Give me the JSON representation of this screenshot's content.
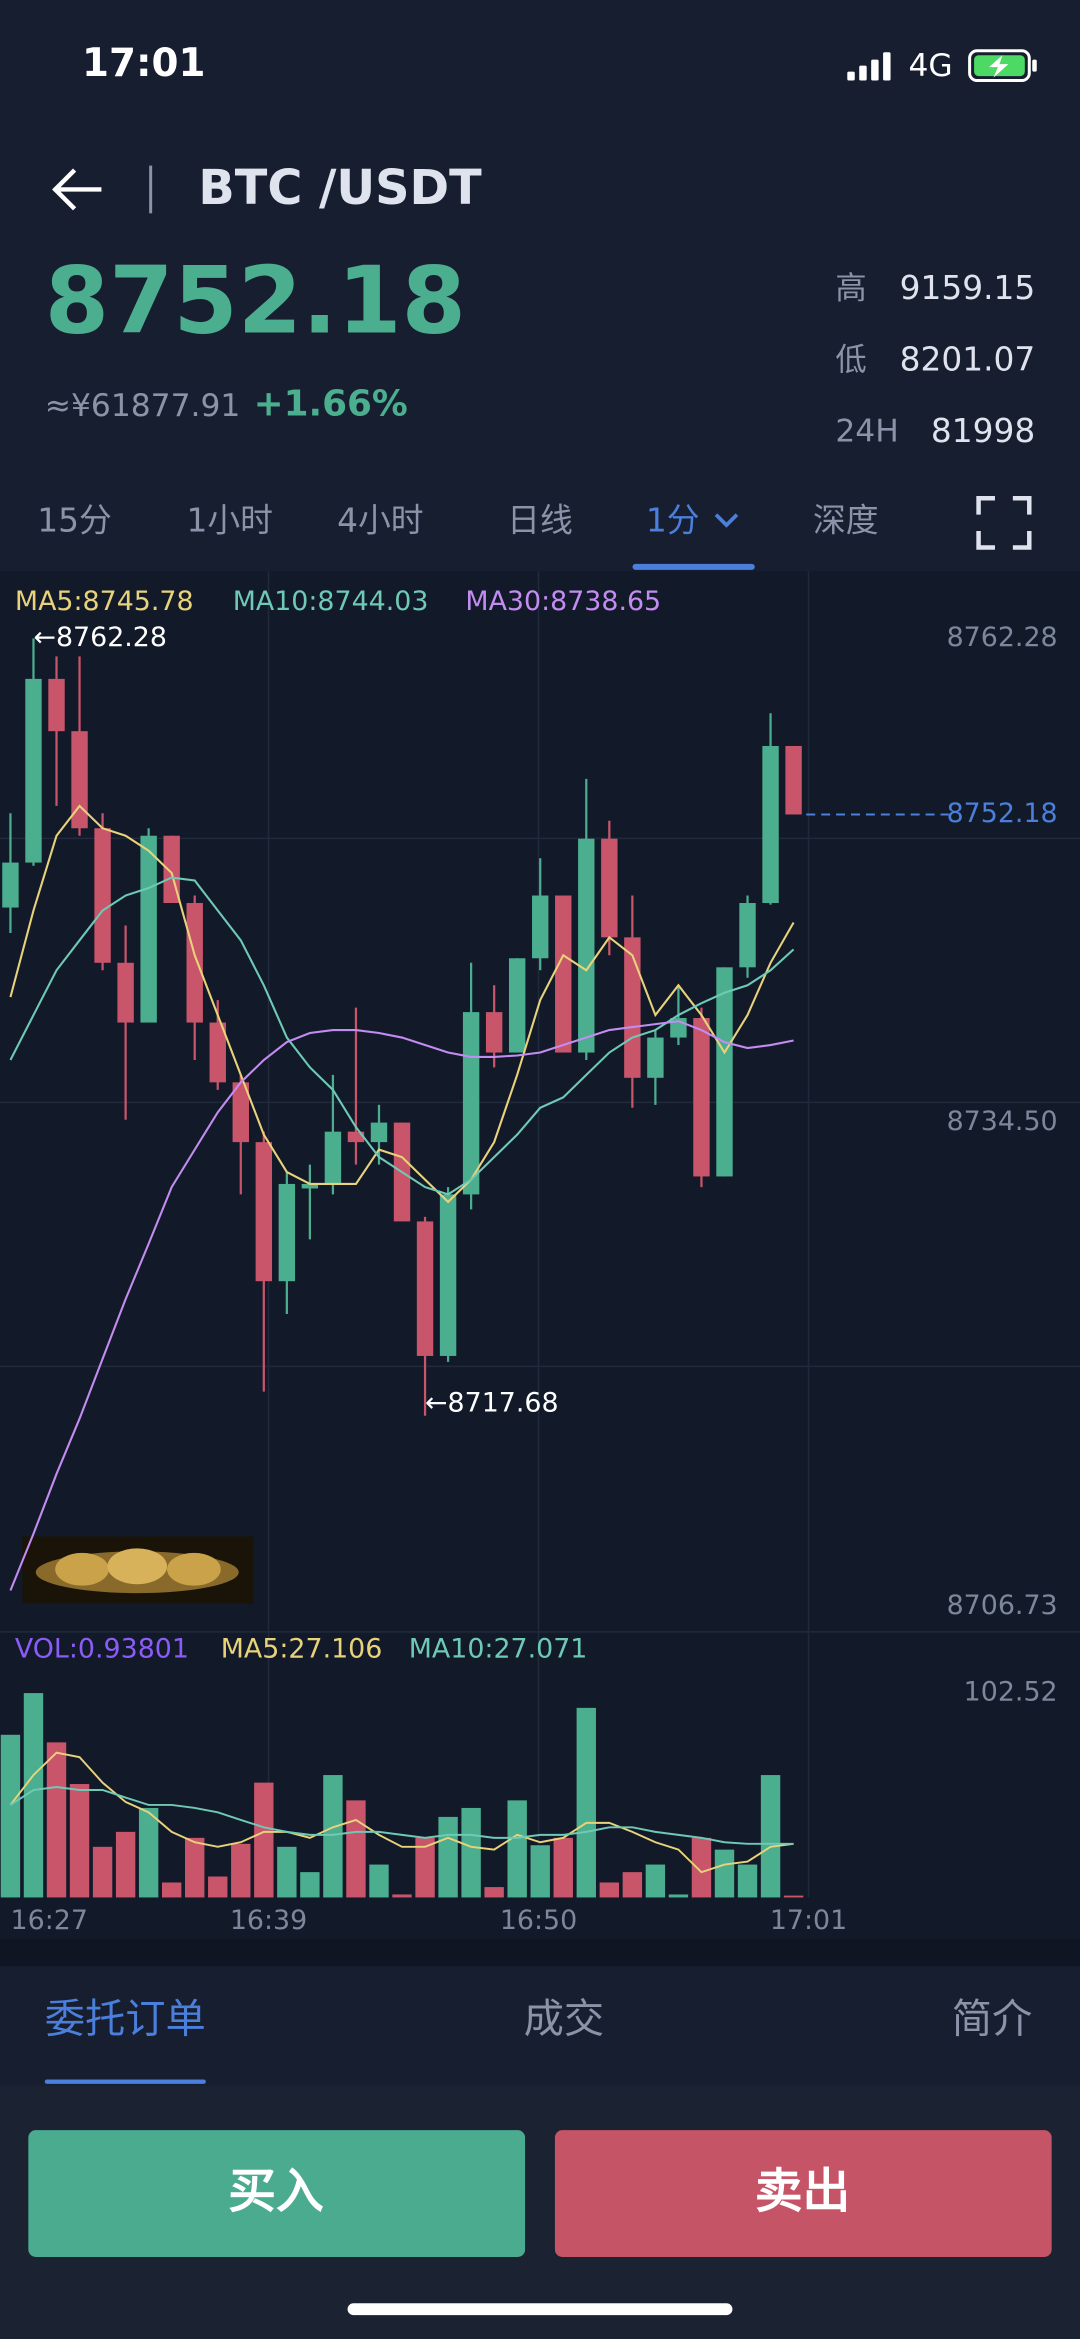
{
  "status_bar": {
    "time": "17:01",
    "network": "4G"
  },
  "header": {
    "pair": "BTC /USDT"
  },
  "ticker": {
    "price": "8752.18",
    "cny": "≈¥61877.91",
    "change": "+1.66%",
    "stats": [
      {
        "label": "高",
        "value": "9159.15"
      },
      {
        "label": "低",
        "value": "8201.07"
      },
      {
        "label": "24H",
        "value": "81998"
      }
    ]
  },
  "tabs": {
    "items": [
      "15分",
      "1小时",
      "4小时",
      "日线",
      "1分",
      "深度"
    ],
    "active": 4
  },
  "chart": {
    "type": "candlestick",
    "colors": {
      "up": "#4bae8e",
      "down": "#c8556a"
    },
    "ylim": [
      8706.73,
      8762.28
    ],
    "yticks": [
      8762.28,
      {
        "value": 8734.5,
        "label": "8734.50"
      },
      8706.73
    ],
    "last_price": 8752.18,
    "high_mark": {
      "value": 8762.28,
      "label": "←8762.28"
    },
    "low_mark": {
      "value": 8717.68,
      "label": "←8717.68"
    },
    "x_labels": [
      "16:27",
      "16:39",
      "16:50",
      "17:01"
    ],
    "candles": {
      "open": [
        8746.84,
        8749.42,
        8759.96,
        8756.96,
        8751.39,
        8743.67,
        8740.24,
        8750.96,
        8747.1,
        8740.24,
        8736.81,
        8733.38,
        8725.4,
        8730.72,
        8730.98,
        8733.98,
        8733.38,
        8734.5,
        8728.83,
        8721.11,
        8730.38,
        8740.84,
        8738.52,
        8743.93,
        8747.53,
        8738.52,
        8750.79,
        8745.13,
        8737.07,
        8739.38,
        8740.5,
        8731.41,
        8743.41,
        8747.1,
        8756.11
      ],
      "high": [
        8752.25,
        8762.28,
        8761.25,
        8761.25,
        8752.25,
        8745.81,
        8751.39,
        8750.96,
        8747.53,
        8741.53,
        8737.24,
        8733.98,
        8731.66,
        8732.09,
        8737.24,
        8741.1,
        8735.52,
        8734.5,
        8729.09,
        8730.8,
        8743.67,
        8742.38,
        8743.93,
        8749.67,
        8747.53,
        8754.22,
        8751.82,
        8747.53,
        8739.81,
        8742.38,
        8741.1,
        8743.41,
        8747.53,
        8757.99,
        8756.11
      ],
      "low": [
        8745.38,
        8749.24,
        8752.67,
        8750.96,
        8743.24,
        8734.66,
        8740.24,
        8747.1,
        8738.09,
        8736.38,
        8730.38,
        8719.06,
        8723.52,
        8727.8,
        8730.38,
        8732.09,
        8732.09,
        8728.83,
        8717.68,
        8720.77,
        8729.52,
        8737.67,
        8738.52,
        8743.24,
        8738.52,
        8738.09,
        8744.1,
        8735.35,
        8735.52,
        8738.95,
        8730.8,
        8731.41,
        8742.81,
        8747.01,
        8752.18
      ],
      "close": [
        8749.42,
        8759.96,
        8756.96,
        8751.39,
        8743.67,
        8740.24,
        8750.96,
        8747.1,
        8740.24,
        8736.81,
        8733.38,
        8725.4,
        8730.98,
        8730.98,
        8733.98,
        8733.38,
        8734.5,
        8728.83,
        8721.11,
        8730.38,
        8740.84,
        8738.52,
        8743.93,
        8747.53,
        8738.52,
        8750.79,
        8745.13,
        8737.07,
        8739.38,
        8740.5,
        8731.41,
        8743.41,
        8747.1,
        8756.11,
        8752.18
      ]
    },
    "ma": [
      {
        "label": "MA5:8745.78",
        "color": "#e8d27a",
        "values": [
          8741.7,
          8746.67,
          8750.96,
          8752.67,
          8751.39,
          8750.96,
          8750.1,
          8748.82,
          8744.1,
          8740.67,
          8737.24,
          8733.81,
          8731.66,
          8730.98,
          8730.98,
          8730.98,
          8732.95,
          8732.52,
          8731.23,
          8729.95,
          8731.23,
          8733.38,
          8737.24,
          8741.53,
          8744.1,
          8743.24,
          8745.13,
          8744.1,
          8740.67,
          8742.38,
          8740.67,
          8738.52,
          8740.67,
          8743.67,
          8745.98
        ]
      },
      {
        "label": "MA10:8744.03",
        "color": "#6ec9b5",
        "values": [
          8738.09,
          8740.67,
          8743.24,
          8744.96,
          8746.67,
          8747.53,
          8747.96,
          8748.56,
          8748.39,
          8746.67,
          8744.96,
          8742.38,
          8739.38,
          8737.67,
          8736.38,
          8734.24,
          8732.52,
          8731.66,
          8730.8,
          8730.38,
          8731.23,
          8732.52,
          8733.81,
          8735.35,
          8735.95,
          8737.24,
          8738.52,
          8739.38,
          8739.81,
          8740.67,
          8741.35,
          8741.95,
          8742.38,
          8743.24,
          8744.44
        ]
      },
      {
        "label": "MA30:8738.65",
        "color": "#c38cf0",
        "values": [
          8707.65,
          8710.91,
          8714.34,
          8717.51,
          8720.94,
          8724.37,
          8727.55,
          8730.8,
          8732.95,
          8735.09,
          8736.81,
          8738.09,
          8739.12,
          8739.64,
          8739.81,
          8739.81,
          8739.64,
          8739.38,
          8738.95,
          8738.52,
          8738.27,
          8738.27,
          8738.35,
          8738.52,
          8738.95,
          8739.38,
          8739.81,
          8739.98,
          8740.15,
          8740.32,
          8739.81,
          8739.12,
          8738.78,
          8738.95,
          8739.21
        ]
      }
    ],
    "volume": {
      "label": "VOL:0.93801",
      "label_color": "#8b5cf6",
      "ylim": [
        0,
        102.52
      ],
      "yticks": [
        102.52
      ],
      "values": [
        81.6,
        102.52,
        77.8,
        56.9,
        25.4,
        32.9,
        44.9,
        7.5,
        29.9,
        10.5,
        26.9,
        57.6,
        25.4,
        12.7,
        61.4,
        48.7,
        16.5,
        1.5,
        29.9,
        40.4,
        44.9,
        5.2,
        48.7,
        26.2,
        29.9,
        95.1,
        7.5,
        12.7,
        16.5,
        1.5,
        29.9,
        24.0,
        16.5,
        61.4,
        0.93801
      ],
      "ma": [
        {
          "label": "MA5:27.106",
          "color": "#e8d27a",
          "values": [
            46.4,
            61.4,
            72.6,
            70.4,
            57.6,
            47.9,
            42.7,
            32.9,
            27.7,
            25.4,
            27.7,
            32.9,
            32.9,
            29.9,
            35.2,
            38.9,
            31.4,
            25.4,
            25.4,
            29.9,
            25.4,
            24.0,
            31.4,
            27.7,
            29.9,
            37.4,
            37.4,
            32.9,
            27.7,
            24.0,
            12.7,
            16.5,
            18.0,
            25.4,
            26.9
          ]
        },
        {
          "label": "MA10:27.071",
          "color": "#6ec9b5",
          "values": [
            46.4,
            53.9,
            55.4,
            53.9,
            53.9,
            50.1,
            46.4,
            46.4,
            44.9,
            42.7,
            38.9,
            35.2,
            32.9,
            31.4,
            31.4,
            32.9,
            32.9,
            31.4,
            29.9,
            31.4,
            31.4,
            29.9,
            29.9,
            31.4,
            31.4,
            32.9,
            35.2,
            35.2,
            32.9,
            31.4,
            29.9,
            27.7,
            26.9,
            26.9,
            26.9
          ]
        }
      ]
    }
  },
  "order_tabs": {
    "items": [
      "委托订单",
      "成交",
      "简介"
    ],
    "active": 0
  },
  "actions": {
    "buy": "买入",
    "sell": "卖出"
  }
}
